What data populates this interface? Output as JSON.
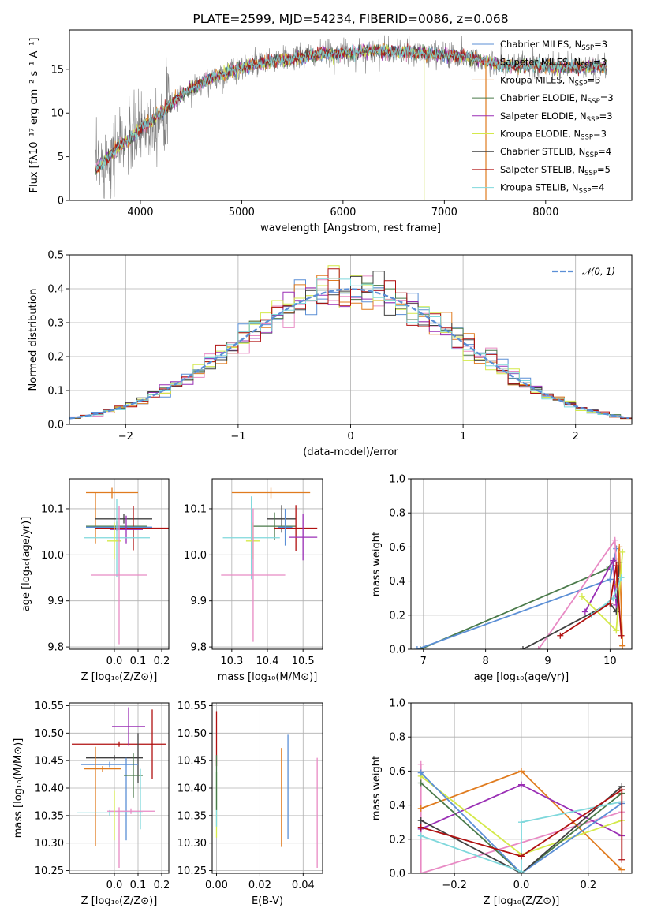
{
  "chart_data": [
    {
      "id": "spectrum",
      "type": "line",
      "title": "PLATE=2599, MJD=54234, FIBERID=0086, z=0.068",
      "xlabel": "wavelength [Angstrom, rest frame]",
      "ylabel": "Flux [fλ10⁻¹⁷ erg cm⁻² s⁻¹ A⁻¹]",
      "xlim": [
        3300,
        8850
      ],
      "ylim": [
        0,
        19.5
      ],
      "xticks": [
        4000,
        5000,
        6000,
        7000,
        8000
      ],
      "yticks": [
        0,
        5,
        10,
        15
      ],
      "continuum": {
        "x": [
          3560,
          3700,
          3800,
          3900,
          3950,
          4000,
          4100,
          4200,
          4300,
          4400,
          4500,
          4700,
          4900,
          5100,
          5300,
          5500,
          5700,
          5900,
          6100,
          6300,
          6500,
          6700,
          6900,
          7100,
          7300,
          7500,
          7700,
          7900,
          8100,
          8300,
          8500,
          8600
        ],
        "y": [
          3.5,
          5.2,
          6.3,
          7.0,
          7.5,
          8.3,
          9.0,
          10.0,
          11.0,
          12.0,
          12.8,
          14.0,
          14.8,
          15.5,
          15.9,
          16.2,
          16.6,
          16.8,
          16.9,
          17.1,
          17.0,
          16.9,
          16.7,
          16.6,
          16.2,
          15.6,
          15.4,
          15.4,
          15.3,
          15.2,
          15.3,
          15.3
        ]
      },
      "data_noise_amplitude": 0.9,
      "spikes": [
        {
          "x": 6800,
          "ymin": 0,
          "ymax": 16.3
        },
        {
          "x": 7410,
          "ymin": 0,
          "ymax": 16.0
        }
      ],
      "legend": {
        "placement": "upper right",
        "entries": [
          {
            "label": "Chabrier MILES, N",
            "sub": "SSP",
            "suffix": "=3",
            "color": "#5b8fd6"
          },
          {
            "label": "Salpeter MILES, N",
            "sub": "SSP",
            "suffix": "=3",
            "color": "#e88ac4"
          },
          {
            "label": "Kroupa MILES, N",
            "sub": "SSP",
            "suffix": "=3",
            "color": "#e07b1e"
          },
          {
            "label": "Chabrier ELODIE, N",
            "sub": "SSP",
            "suffix": "=3",
            "color": "#4a7a4a"
          },
          {
            "label": "Salpeter ELODIE, N",
            "sub": "SSP",
            "suffix": "=3",
            "color": "#9a2fb5"
          },
          {
            "label": "Kroupa ELODIE, N",
            "sub": "SSP",
            "suffix": "=3",
            "color": "#d4e94a"
          },
          {
            "label": "Chabrier STELIB, N",
            "sub": "SSP",
            "suffix": "=4",
            "color": "#404040"
          },
          {
            "label": "Salpeter STELIB, N",
            "sub": "SSP",
            "suffix": "=5",
            "color": "#b01010"
          },
          {
            "label": "Kroupa STELIB, N",
            "sub": "SSP",
            "suffix": "=4",
            "color": "#7fd8dc"
          }
        ]
      }
    },
    {
      "id": "residuals",
      "type": "line",
      "xlabel": "(data-model)/error",
      "ylabel": "Normed distribution",
      "xlim": [
        -2.5,
        2.5
      ],
      "ylim": [
        0,
        0.5
      ],
      "xticks": [
        -2,
        -1,
        0,
        1,
        2
      ],
      "yticks": [
        0.0,
        0.1,
        0.2,
        0.3,
        0.4,
        0.5
      ],
      "grid": true,
      "legend": {
        "placement": "upper right",
        "entries": [
          {
            "label": "𝒩(0, 1)",
            "color": "#5b8fd6",
            "dash": true
          }
        ]
      },
      "bin_width": 0.1
    },
    {
      "id": "z-age",
      "type": "scatter",
      "xlabel": "Z [log₁₀(Z/Z⊙)]",
      "ylabel": "age  [log₁₀(age/yr)]",
      "xlim": [
        -0.19,
        0.23
      ],
      "ylim": [
        9.795,
        10.165
      ],
      "xticks": [
        0.0,
        0.1,
        0.2
      ],
      "yticks": [
        9.8,
        9.9,
        10.0,
        10.1
      ],
      "grid": true,
      "points": [
        {
          "color": "#e07b1e",
          "x": -0.01,
          "xerr": 0.11,
          "y": 10.135,
          "yerr": 0.012
        },
        {
          "color": "#e07b1e",
          "x": -0.08,
          "xerr": 0.0,
          "y": 10.08,
          "yerr": 0.055
        },
        {
          "color": "#404040",
          "x": 0.04,
          "xerr": 0.12,
          "y": 10.078,
          "yerr": 0.01
        },
        {
          "color": "#4a7a4a",
          "x": 0.01,
          "xerr": 0.13,
          "y": 10.062,
          "yerr": 0.01
        },
        {
          "color": "#b01010",
          "x": 0.08,
          "xerr": 0.16,
          "y": 10.058,
          "yerr": 0.048
        },
        {
          "color": "#5b8fd6",
          "x": 0.02,
          "xerr": 0.14,
          "y": 10.06,
          "yerr": 0.005
        },
        {
          "color": "#9a2fb5",
          "x": 0.05,
          "xerr": 0.07,
          "y": 10.055,
          "yerr": 0.03
        },
        {
          "color": "#7fd8dc",
          "x": 0.01,
          "xerr": 0.14,
          "y": 10.037,
          "yerr": 0.085
        },
        {
          "color": "#d4e94a",
          "x": 0.0,
          "xerr": 0.03,
          "y": 10.03,
          "yerr": 0.04
        },
        {
          "color": "#e88ac4",
          "x": 0.02,
          "xerr": 0.12,
          "y": 9.956,
          "yerr": 0.15
        }
      ]
    },
    {
      "id": "mass-age",
      "type": "scatter",
      "xlabel": "mass [log₁₀(M/M⊙)]",
      "ylabel": "",
      "xlim": [
        10.245,
        10.555
      ],
      "ylim": [
        9.795,
        10.165
      ],
      "xticks": [
        10.3,
        10.4,
        10.5
      ],
      "yticks": [
        9.8,
        9.9,
        10.0,
        10.1
      ],
      "grid": true,
      "points": [
        {
          "color": "#e07b1e",
          "x": 10.41,
          "xerr": 0.11,
          "y": 10.135,
          "yerr": 0.012
        },
        {
          "color": "#404040",
          "x": 10.44,
          "xerr": 0.04,
          "y": 10.078,
          "yerr": 0.03
        },
        {
          "color": "#4a7a4a",
          "x": 10.42,
          "xerr": 0.06,
          "y": 10.062,
          "yerr": 0.03
        },
        {
          "color": "#b01010",
          "x": 10.48,
          "xerr": 0.06,
          "y": 10.058,
          "yerr": 0.05
        },
        {
          "color": "#9a2fb5",
          "x": 10.5,
          "xerr": 0.04,
          "y": 10.038,
          "yerr": 0.05
        },
        {
          "color": "#7fd8dc",
          "x": 10.355,
          "xerr": 0.08,
          "y": 10.037,
          "yerr": 0.09
        },
        {
          "color": "#5b8fd6",
          "x": 10.45,
          "xerr": 0.02,
          "y": 10.06,
          "yerr": 0.04
        },
        {
          "color": "#d4e94a",
          "x": 10.36,
          "xerr": 0.02,
          "y": 10.03,
          "yerr": 0.04
        },
        {
          "color": "#e88ac4",
          "x": 10.36,
          "xerr": 0.09,
          "y": 9.956,
          "yerr": 0.145
        }
      ]
    },
    {
      "id": "age-weight",
      "type": "line",
      "xlabel": "age  [log₁₀(age/yr)]",
      "ylabel": "mass weight",
      "xlim": [
        6.8,
        10.35
      ],
      "ylim": [
        0,
        1.0
      ],
      "xticks": [
        7,
        8,
        9,
        10
      ],
      "yticks": [
        0.0,
        0.2,
        0.4,
        0.6,
        0.8,
        1.0
      ],
      "grid": true,
      "series": [
        {
          "color": "#4a7a4a",
          "x": [
            6.95,
            9.95,
            10.08
          ],
          "y": [
            0.0,
            0.47,
            0.53
          ]
        },
        {
          "color": "#5b8fd6",
          "x": [
            6.9,
            10.0,
            10.1
          ],
          "y": [
            0.0,
            0.41,
            0.59
          ]
        },
        {
          "color": "#e88ac4",
          "x": [
            8.85,
            10.08,
            10.12
          ],
          "y": [
            0.0,
            0.64,
            0.36
          ]
        },
        {
          "color": "#404040",
          "x": [
            8.6,
            10.0,
            10.1,
            10.15
          ],
          "y": [
            0.0,
            0.27,
            0.22,
            0.51
          ]
        },
        {
          "color": "#9a2fb5",
          "x": [
            9.6,
            10.05,
            10.1
          ],
          "y": [
            0.22,
            0.52,
            0.26
          ]
        },
        {
          "color": "#e07b1e",
          "x": [
            10.1,
            10.15,
            10.2
          ],
          "y": [
            0.38,
            0.6,
            0.02
          ]
        },
        {
          "color": "#d4e94a",
          "x": [
            9.55,
            10.1,
            10.2
          ],
          "y": [
            0.31,
            0.11,
            0.57
          ]
        },
        {
          "color": "#7fd8dc",
          "x": [
            9.7,
            10.05,
            10.18
          ],
          "y": [
            0.2,
            0.3,
            0.42
          ]
        },
        {
          "color": "#b01010",
          "x": [
            9.2,
            10.0,
            10.1,
            10.18
          ],
          "y": [
            0.08,
            0.27,
            0.49,
            0.08
          ]
        }
      ]
    },
    {
      "id": "z-mass",
      "type": "scatter",
      "xlabel": "Z [log₁₀(Z/Z⊙)]",
      "ylabel": "mass [log₁₀(M/M⊙)]",
      "xlim": [
        -0.19,
        0.23
      ],
      "ylim": [
        10.245,
        10.555
      ],
      "xticks": [
        0.0,
        0.1,
        0.2
      ],
      "yticks": [
        10.25,
        10.3,
        10.35,
        10.4,
        10.45,
        10.5,
        10.55
      ],
      "grid": true,
      "points": [
        {
          "color": "#b01010",
          "x": 0.02,
          "xerr": 0.2,
          "y": 10.48,
          "yerr": 0.005
        },
        {
          "color": "#b01010",
          "x": 0.16,
          "xerr": 0.0,
          "y": 10.48,
          "yerr": 0.063
        },
        {
          "color": "#9a2fb5",
          "x": 0.06,
          "xerr": 0.07,
          "y": 10.512,
          "yerr": 0.035
        },
        {
          "color": "#404040",
          "x": 0.0,
          "xerr": 0.12,
          "y": 10.455,
          "yerr": 0.005
        },
        {
          "color": "#404040",
          "x": 0.1,
          "xerr": 0.0,
          "y": 10.455,
          "yerr": 0.045
        },
        {
          "color": "#5b8fd6",
          "x": -0.02,
          "xerr": 0.12,
          "y": 10.443,
          "yerr": 0.005
        },
        {
          "color": "#5b8fd6",
          "x": 0.05,
          "xerr": 0.0,
          "y": 10.38,
          "yerr": 0.075
        },
        {
          "color": "#e07b1e",
          "x": -0.05,
          "xerr": 0.08,
          "y": 10.435,
          "yerr": 0.005
        },
        {
          "color": "#e07b1e",
          "x": -0.08,
          "xerr": 0.0,
          "y": 10.385,
          "yerr": 0.09
        },
        {
          "color": "#4a7a4a",
          "x": 0.08,
          "xerr": 0.04,
          "y": 10.423,
          "yerr": 0.04
        },
        {
          "color": "#7fd8dc",
          "x": -0.02,
          "xerr": 0.14,
          "y": 10.355,
          "yerr": 0.005
        },
        {
          "color": "#7fd8dc",
          "x": 0.11,
          "xerr": 0.0,
          "y": 10.38,
          "yerr": 0.055
        },
        {
          "color": "#e88ac4",
          "x": 0.07,
          "xerr": 0.1,
          "y": 10.358,
          "yerr": 0.005
        },
        {
          "color": "#e88ac4",
          "x": 0.02,
          "xerr": 0.0,
          "y": 10.31,
          "yerr": 0.055
        },
        {
          "color": "#d4e94a",
          "x": 0.0,
          "xerr": 0.0,
          "y": 10.35,
          "yerr": 0.045
        }
      ]
    },
    {
      "id": "ebv-mass",
      "type": "scatter",
      "xlabel": "E(B-V)",
      "ylabel": "",
      "xlim": [
        -0.002,
        0.049
      ],
      "ylim": [
        10.245,
        10.555
      ],
      "xticks": [
        0.0,
        0.02,
        0.04
      ],
      "yticks": [
        10.25,
        10.3,
        10.35,
        10.4,
        10.45,
        10.5,
        10.55
      ],
      "grid": true,
      "points": [
        {
          "color": "#b01010",
          "x": 0.0,
          "xerr": 0,
          "y": 10.49,
          "yerr": 0.05
        },
        {
          "color": "#d4e94a",
          "x": 0.0,
          "xerr": 0,
          "y": 10.37,
          "yerr": 0.06
        },
        {
          "color": "#7fd8dc",
          "x": 0.0,
          "xerr": 0,
          "y": 10.38,
          "yerr": 0.05
        },
        {
          "color": "#4a7a4a",
          "x": 0.0,
          "xerr": 0,
          "y": 10.41,
          "yerr": 0.05
        },
        {
          "color": "#e07b1e",
          "x": 0.03,
          "xerr": 0,
          "y": 10.383,
          "yerr": 0.09
        },
        {
          "color": "#5b8fd6",
          "x": 0.033,
          "xerr": 0,
          "y": 10.402,
          "yerr": 0.095
        },
        {
          "color": "#e88ac4",
          "x": 0.0465,
          "xerr": 0,
          "y": 10.355,
          "yerr": 0.1
        }
      ]
    },
    {
      "id": "z-weight",
      "type": "line",
      "xlabel": "Z [log₁₀(Z/Z⊙)]",
      "ylabel": "mass weight",
      "xlim": [
        -0.33,
        0.33
      ],
      "ylim": [
        0,
        1.0
      ],
      "xticks": [
        -0.2,
        0.0,
        0.2
      ],
      "yticks": [
        0.0,
        0.2,
        0.4,
        0.6,
        0.8,
        1.0
      ],
      "grid": true,
      "series": [
        {
          "color": "#e88ac4",
          "x": [
            -0.3,
            -0.3,
            0.3
          ],
          "y": [
            0.64,
            0.0,
            0.36
          ]
        },
        {
          "color": "#e07b1e",
          "x": [
            -0.3,
            0.0,
            0.3
          ],
          "y": [
            0.38,
            0.6,
            0.02
          ]
        },
        {
          "color": "#9a2fb5",
          "x": [
            -0.3,
            0.0,
            0.3
          ],
          "y": [
            0.26,
            0.52,
            0.22
          ]
        },
        {
          "color": "#d4e94a",
          "x": [
            -0.3,
            0.0,
            0.3
          ],
          "y": [
            0.57,
            0.11,
            0.31
          ]
        },
        {
          "color": "#4a7a4a",
          "x": [
            -0.3,
            0.0,
            0.3
          ],
          "y": [
            0.53,
            0.0,
            0.47
          ]
        },
        {
          "color": "#5b8fd6",
          "x": [
            -0.3,
            0.0,
            0.3
          ],
          "y": [
            0.59,
            0.0,
            0.41
          ]
        },
        {
          "color": "#404040",
          "x": [
            -0.3,
            0.0,
            0.3
          ],
          "y": [
            0.31,
            0.0,
            0.51
          ]
        },
        {
          "color": "#7fd8dc",
          "x": [
            -0.3,
            0.0,
            0.0,
            0.3
          ],
          "y": [
            0.22,
            0.01,
            0.3,
            0.42
          ]
        },
        {
          "color": "#b01010",
          "x": [
            -0.3,
            0.0,
            0.3,
            0.3
          ],
          "y": [
            0.27,
            0.1,
            0.49,
            0.08
          ]
        }
      ]
    }
  ]
}
